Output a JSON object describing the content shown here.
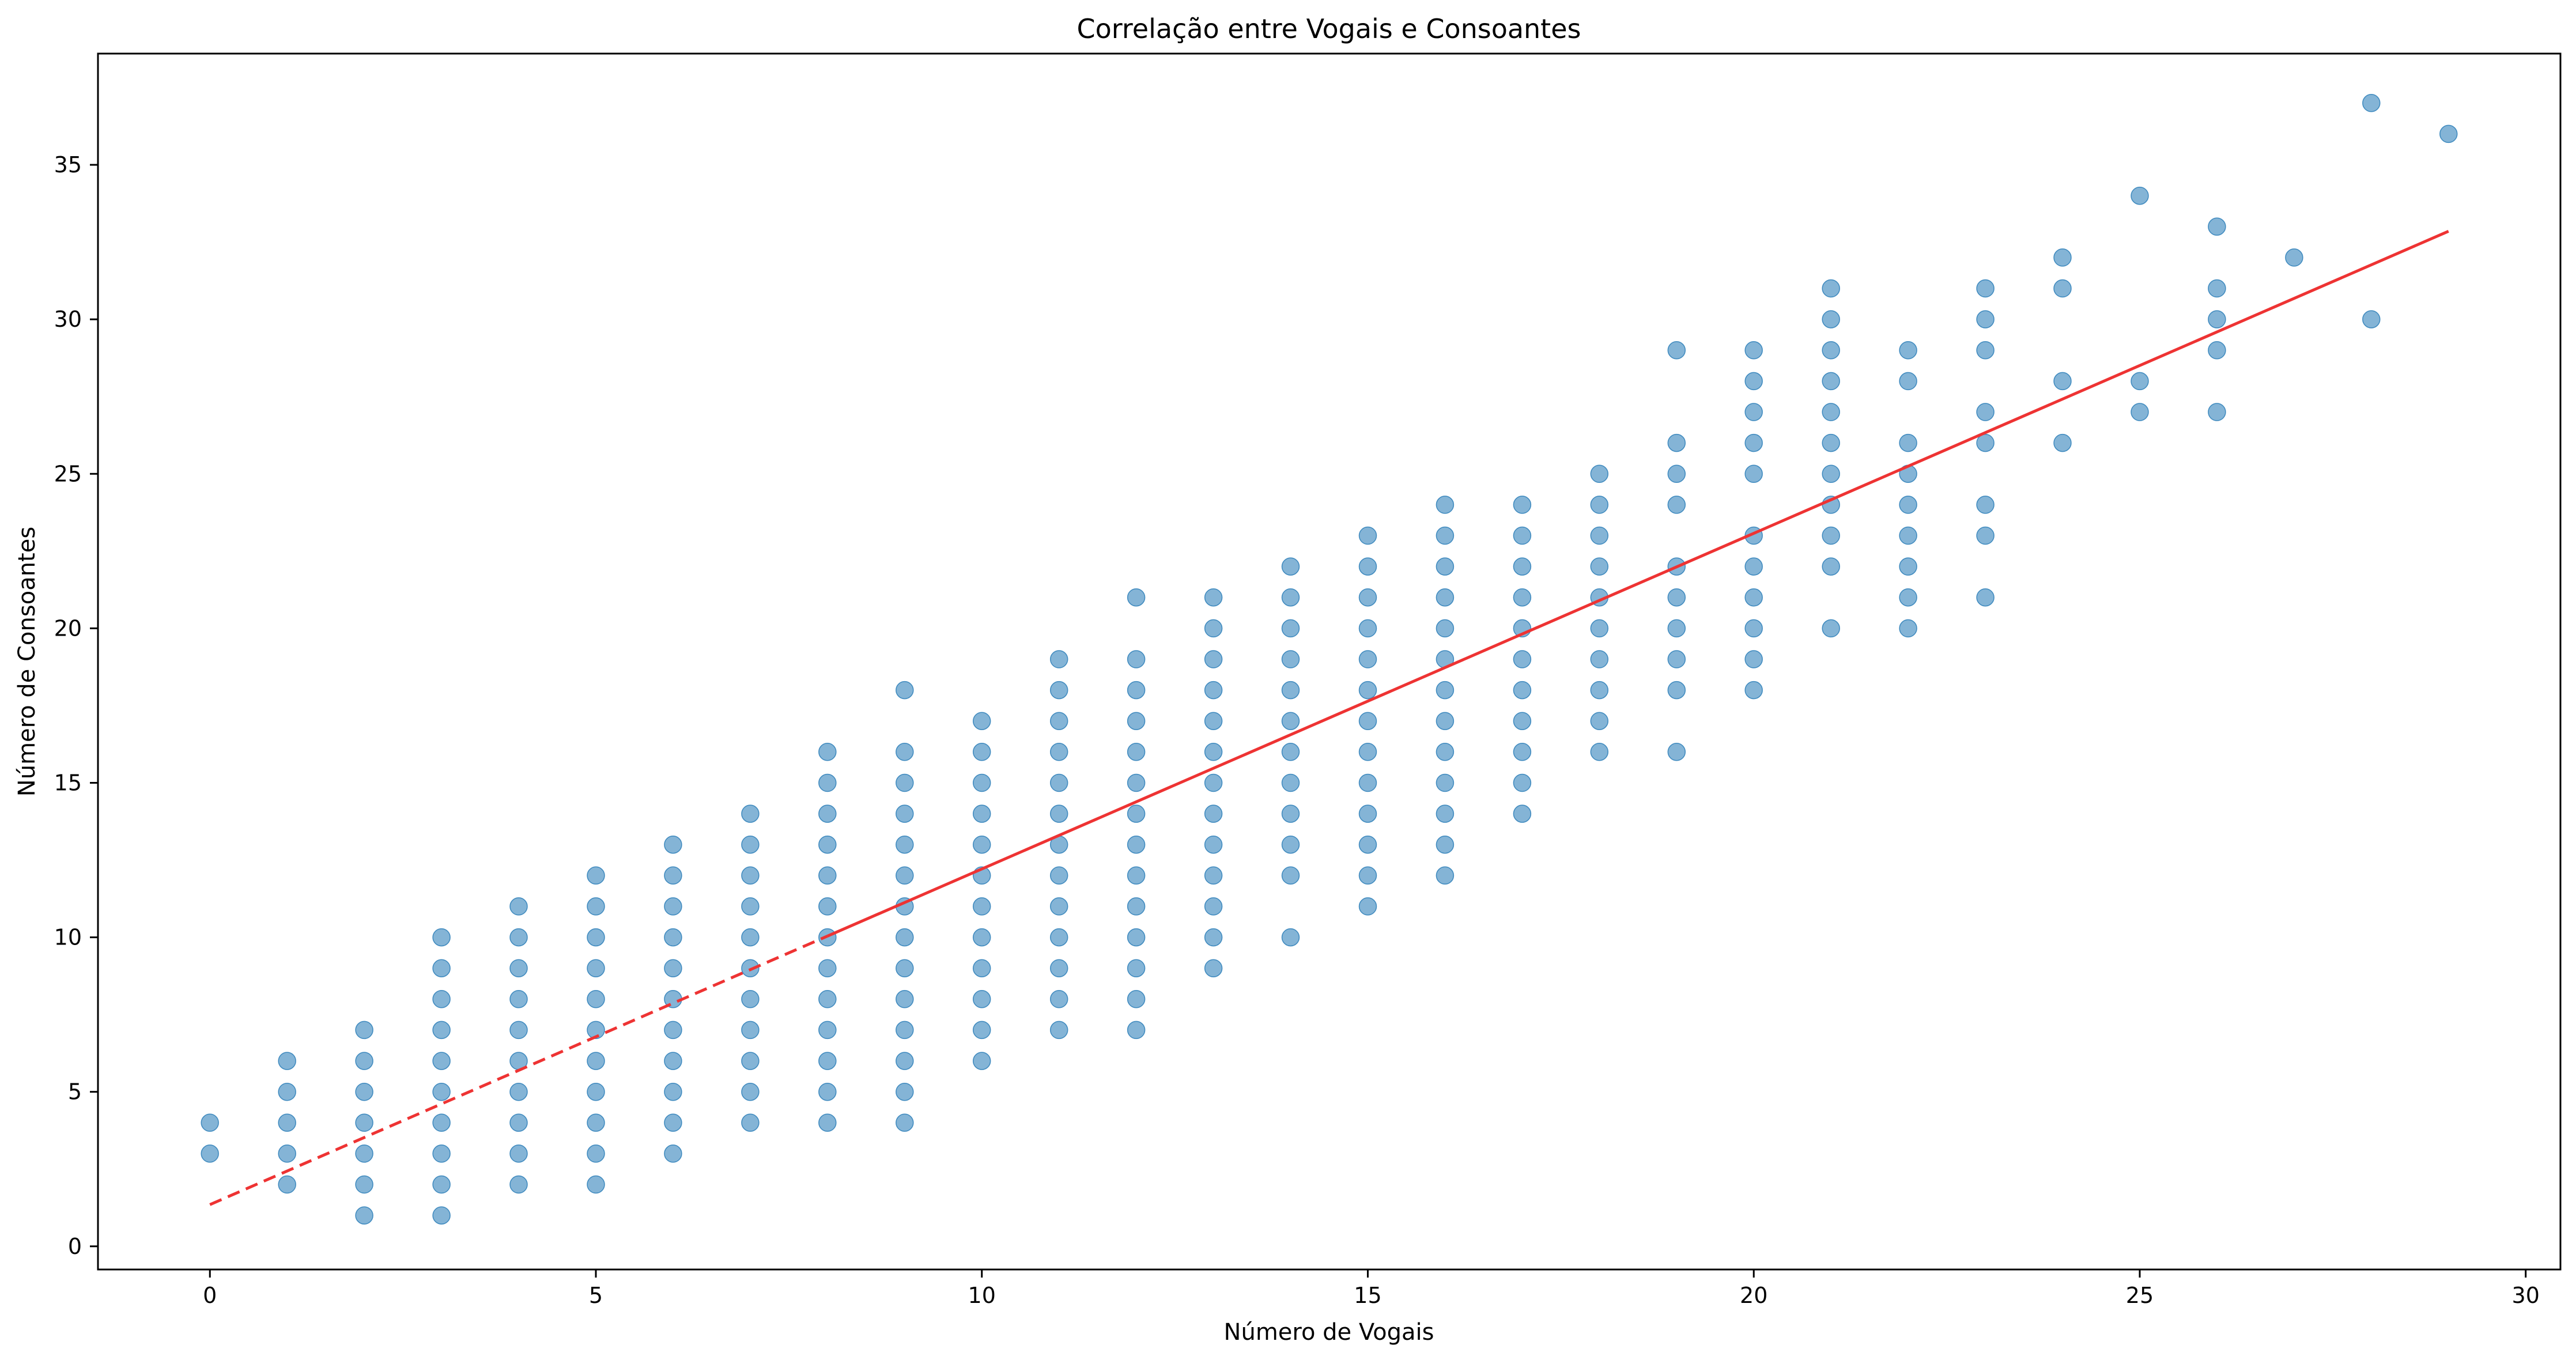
{
  "chart_data": {
    "type": "scatter",
    "title": "Correlação entre Vogais e Consoantes",
    "xlabel": "Número de Vogais",
    "ylabel": "Número de Consoantes",
    "xlim": [
      -1.45,
      30.45
    ],
    "ylim": [
      -0.75,
      38.6
    ],
    "xticks": [
      0,
      5,
      10,
      15,
      20,
      25,
      30
    ],
    "yticks": [
      0,
      5,
      10,
      15,
      20,
      25,
      30,
      35
    ],
    "grid": false,
    "colors": {
      "points": "#1f77b4",
      "trend": "#ee3333"
    },
    "points_by_x": [
      {
        "x": 0,
        "y": [
          3,
          4
        ]
      },
      {
        "x": 1,
        "y": [
          2,
          3,
          4,
          5,
          6
        ]
      },
      {
        "x": 2,
        "y": [
          1,
          2,
          3,
          4,
          5,
          6,
          7
        ]
      },
      {
        "x": 3,
        "y": [
          1,
          2,
          3,
          4,
          5,
          6,
          7,
          8,
          9,
          10
        ]
      },
      {
        "x": 4,
        "y": [
          2,
          3,
          4,
          5,
          6,
          7,
          8,
          9,
          10,
          11
        ]
      },
      {
        "x": 5,
        "y": [
          2,
          3,
          4,
          5,
          6,
          7,
          8,
          9,
          10,
          11,
          12
        ]
      },
      {
        "x": 6,
        "y": [
          3,
          4,
          5,
          6,
          7,
          8,
          9,
          10,
          11,
          12,
          13
        ]
      },
      {
        "x": 7,
        "y": [
          4,
          5,
          6,
          7,
          8,
          9,
          10,
          11,
          12,
          13,
          14
        ]
      },
      {
        "x": 8,
        "y": [
          4,
          5,
          6,
          7,
          8,
          9,
          10,
          11,
          12,
          13,
          14,
          15,
          16
        ]
      },
      {
        "x": 9,
        "y": [
          4,
          5,
          6,
          7,
          8,
          9,
          10,
          11,
          12,
          13,
          14,
          15,
          16,
          18
        ]
      },
      {
        "x": 10,
        "y": [
          6,
          7,
          8,
          9,
          10,
          11,
          12,
          13,
          14,
          15,
          16,
          17
        ]
      },
      {
        "x": 11,
        "y": [
          7,
          8,
          9,
          10,
          11,
          12,
          13,
          14,
          15,
          16,
          17,
          18,
          19
        ]
      },
      {
        "x": 12,
        "y": [
          7,
          8,
          9,
          10,
          11,
          12,
          13,
          14,
          15,
          16,
          17,
          18,
          19,
          21
        ]
      },
      {
        "x": 13,
        "y": [
          9,
          10,
          11,
          12,
          13,
          14,
          15,
          16,
          17,
          18,
          19,
          20,
          21
        ]
      },
      {
        "x": 14,
        "y": [
          10,
          12,
          13,
          14,
          15,
          16,
          17,
          18,
          19,
          20,
          21,
          22
        ]
      },
      {
        "x": 15,
        "y": [
          11,
          12,
          13,
          14,
          15,
          16,
          17,
          18,
          19,
          20,
          21,
          22,
          23
        ]
      },
      {
        "x": 16,
        "y": [
          12,
          13,
          14,
          15,
          16,
          17,
          18,
          19,
          20,
          21,
          22,
          23,
          24
        ]
      },
      {
        "x": 17,
        "y": [
          14,
          15,
          16,
          17,
          18,
          19,
          20,
          21,
          22,
          23,
          24
        ]
      },
      {
        "x": 18,
        "y": [
          16,
          17,
          18,
          19,
          20,
          21,
          22,
          23,
          24,
          25
        ]
      },
      {
        "x": 19,
        "y": [
          16,
          18,
          19,
          20,
          21,
          22,
          24,
          25,
          26,
          29
        ]
      },
      {
        "x": 20,
        "y": [
          18,
          19,
          20,
          21,
          22,
          23,
          25,
          26,
          27,
          28,
          29
        ]
      },
      {
        "x": 21,
        "y": [
          20,
          22,
          23,
          24,
          25,
          26,
          27,
          28,
          29,
          30,
          31
        ]
      },
      {
        "x": 22,
        "y": [
          20,
          21,
          22,
          23,
          24,
          25,
          26,
          28,
          29
        ]
      },
      {
        "x": 23,
        "y": [
          21,
          23,
          24,
          26,
          27,
          29,
          30,
          31
        ]
      },
      {
        "x": 24,
        "y": [
          26,
          28,
          31,
          32
        ]
      },
      {
        "x": 25,
        "y": [
          27,
          28,
          34
        ]
      },
      {
        "x": 26,
        "y": [
          27,
          29,
          30,
          31,
          33
        ]
      },
      {
        "x": 27,
        "y": [
          32
        ]
      },
      {
        "x": 28,
        "y": [
          30,
          37
        ]
      },
      {
        "x": 29,
        "y": [
          36
        ]
      }
    ],
    "trend_line": {
      "dashed_segment": {
        "x": [
          0,
          8
        ],
        "y": [
          1.35,
          10.04
        ]
      },
      "solid_segment": {
        "x": [
          8,
          29
        ],
        "y": [
          10.04,
          32.85
        ]
      }
    }
  }
}
